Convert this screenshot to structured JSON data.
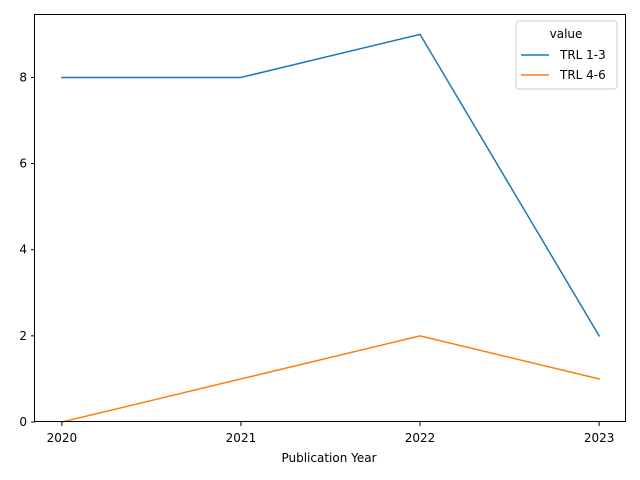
{
  "chart_data": {
    "type": "line",
    "x": [
      2020,
      2021,
      2022,
      2023
    ],
    "x_tick_labels": [
      "2020",
      "2021",
      "2022",
      "2023"
    ],
    "xlabel": "Publication Year",
    "ylabel": "",
    "ylim": [
      0,
      9.45
    ],
    "y_ticks": [
      0,
      2,
      4,
      6,
      8
    ],
    "y_tick_labels": [
      "0",
      "2",
      "4",
      "6",
      "8"
    ],
    "grid": false,
    "legend": {
      "title": "value",
      "placement": "top-right"
    },
    "series": [
      {
        "name": "TRL 1-3",
        "color": "#1f77b4",
        "values": [
          8,
          8,
          9,
          2
        ]
      },
      {
        "name": "TRL 4-6",
        "color": "#ff7f0e",
        "values": [
          0,
          1,
          2,
          1
        ]
      }
    ]
  }
}
